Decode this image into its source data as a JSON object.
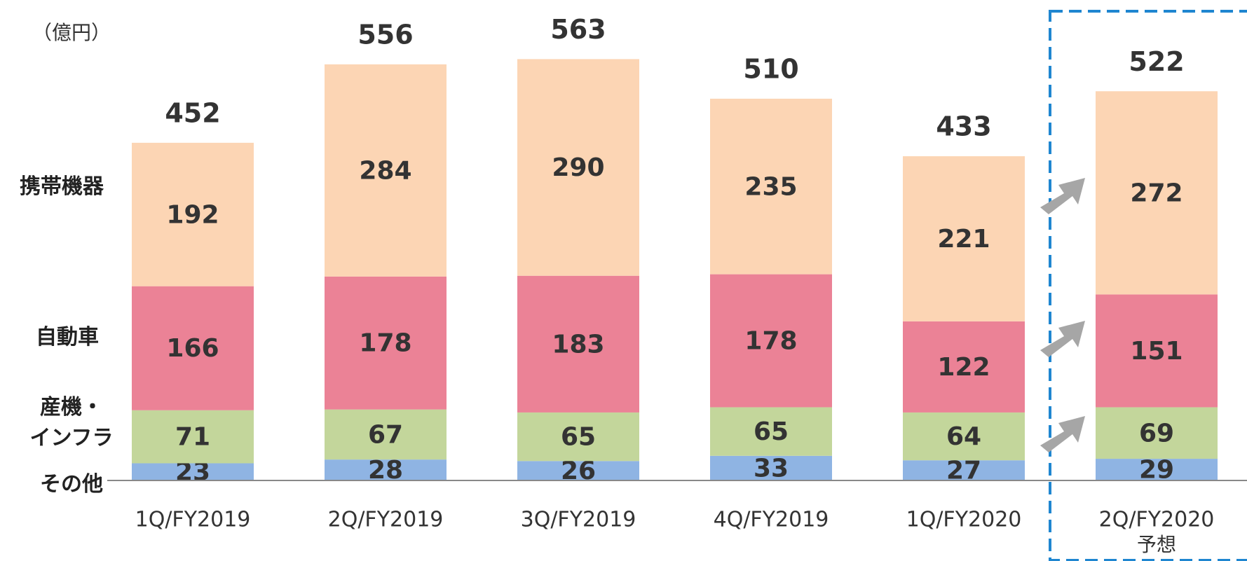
{
  "chart_data": {
    "type": "stacked_bar",
    "unit_label": "（億円）",
    "categories": [
      "1Q/FY2019",
      "2Q/FY2019",
      "3Q/FY2019",
      "4Q/FY2019",
      "1Q/FY2020",
      "2Q/FY2020"
    ],
    "forecast_note": "予想",
    "series": [
      {
        "name": "その他",
        "color": "#8fb4e3",
        "values": [
          23,
          28,
          26,
          33,
          27,
          29
        ]
      },
      {
        "name": "産機・\nインフラ",
        "color": "#c3d69b",
        "values": [
          71,
          67,
          65,
          65,
          64,
          69
        ]
      },
      {
        "name": "自動車",
        "color": "#eb8296",
        "values": [
          166,
          178,
          183,
          178,
          122,
          151
        ]
      },
      {
        "name": "携帯機器",
        "color": "#fcd5b4",
        "values": [
          192,
          284,
          290,
          235,
          221,
          272
        ]
      }
    ],
    "totals": [
      452,
      556,
      563,
      510,
      433,
      522
    ],
    "ylim": [
      0,
      600
    ]
  }
}
